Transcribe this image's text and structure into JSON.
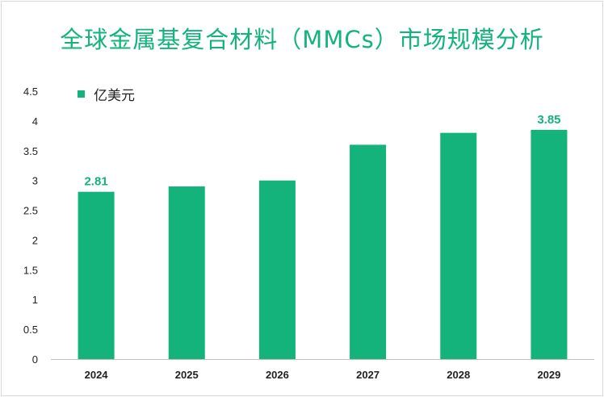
{
  "title": "全球金属基复合材料（MMCs）市场规模分析",
  "chart_data": {
    "type": "bar",
    "categories": [
      "2024",
      "2025",
      "2026",
      "2027",
      "2028",
      "2029"
    ],
    "series": [
      {
        "name": "亿美元",
        "values": [
          2.81,
          2.9,
          3.0,
          3.6,
          3.8,
          3.85
        ]
      }
    ],
    "data_labels": [
      "2.81",
      "",
      "",
      "",
      "",
      "3.85"
    ],
    "yticks": [
      "0",
      "0.5",
      "1",
      "1.5",
      "2",
      "2.5",
      "3",
      "3.5",
      "4",
      "4.5"
    ],
    "ylim": [
      0,
      4.5
    ],
    "color": "#13b37b",
    "legend_position": "top-left",
    "grid": false
  }
}
